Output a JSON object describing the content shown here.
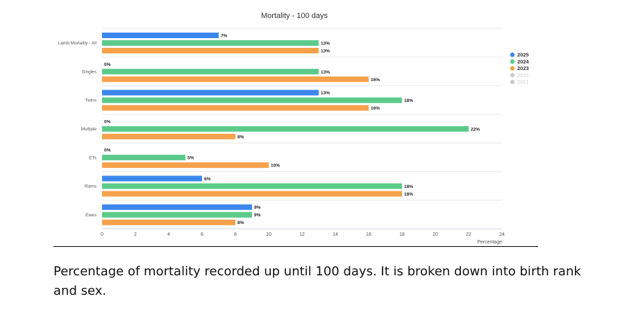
{
  "caption": "Percentage of mortality recorded up until 100 days. It is broken down into birth rank and sex.",
  "chart_data": {
    "type": "bar",
    "orientation": "horizontal",
    "title": "Mortality - 100 days",
    "xlabel": "Percentage",
    "ylabel": "",
    "xlim": [
      0,
      24
    ],
    "xticks": [
      0,
      2,
      4,
      6,
      8,
      10,
      12,
      14,
      16,
      18,
      20,
      22,
      24
    ],
    "grid": "horizontal separators",
    "legend_position": "right",
    "categories": [
      "Lamb Mortality - All",
      "Singles",
      "Twins",
      "Multiple",
      "ETs",
      "Rams",
      "Ewes"
    ],
    "series": [
      {
        "name": "2025",
        "color": "#3b87ee",
        "values": [
          7,
          0,
          13,
          0,
          0,
          6,
          9
        ],
        "labels": [
          "7%",
          "0%",
          "13%",
          "0%",
          "0%",
          "6%",
          "9%"
        ]
      },
      {
        "name": "2024",
        "color": "#5ccb8a",
        "values": [
          13,
          13,
          18,
          22,
          5,
          18,
          9
        ],
        "labels": [
          "13%",
          "13%",
          "18%",
          "22%",
          "5%",
          "18%",
          "9%"
        ]
      },
      {
        "name": "2023",
        "color": "#f6a14b",
        "values": [
          13,
          16,
          16,
          8,
          10,
          18,
          8
        ],
        "labels": [
          "13%",
          "16%",
          "16%",
          "8%",
          "10%",
          "18%",
          "8%"
        ]
      }
    ],
    "hidden_legend_entries": [
      {
        "name": "2022",
        "color": "#cccccc"
      },
      {
        "name": "2021",
        "color": "#cccccc"
      }
    ]
  }
}
